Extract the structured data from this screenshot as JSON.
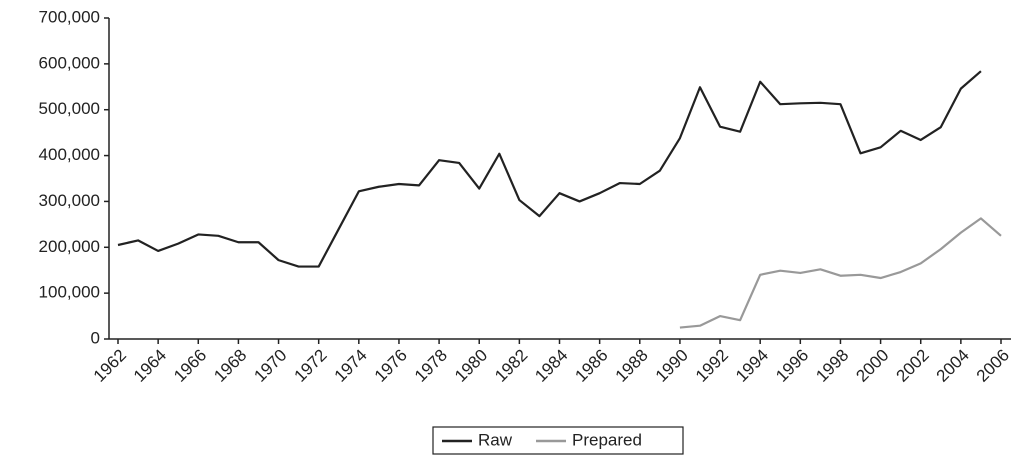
{
  "chart_data": {
    "type": "line",
    "x": [
      1962,
      1963,
      1964,
      1965,
      1966,
      1967,
      1968,
      1969,
      1970,
      1971,
      1972,
      1973,
      1974,
      1975,
      1976,
      1977,
      1978,
      1979,
      1980,
      1981,
      1982,
      1983,
      1984,
      1985,
      1986,
      1987,
      1988,
      1989,
      1990,
      1991,
      1992,
      1993,
      1994,
      1995,
      1996,
      1997,
      1998,
      1999,
      2000,
      2001,
      2002,
      2003,
      2004,
      2005,
      2006
    ],
    "series": [
      {
        "name": "Raw",
        "color": "#222222",
        "values": [
          205000,
          215000,
          192000,
          208000,
          228000,
          225000,
          211000,
          211000,
          172000,
          158000,
          158000,
          240000,
          322000,
          332000,
          338000,
          335000,
          390000,
          384000,
          328000,
          404000,
          303000,
          268000,
          318000,
          300000,
          318000,
          340000,
          338000,
          367000,
          438000,
          549000,
          463000,
          452000,
          561000,
          512000,
          514000,
          515000,
          512000,
          405000,
          418000,
          454000,
          434000,
          462000,
          546000,
          584000,
          null
        ]
      },
      {
        "name": "Prepared",
        "color": "#999999",
        "values": [
          null,
          null,
          null,
          null,
          null,
          null,
          null,
          null,
          null,
          null,
          null,
          null,
          null,
          null,
          null,
          null,
          null,
          null,
          null,
          null,
          null,
          null,
          null,
          null,
          null,
          null,
          null,
          null,
          25000,
          29000,
          50000,
          41000,
          140000,
          149000,
          144000,
          152000,
          138000,
          140000,
          133000,
          146000,
          165000,
          196000,
          232000,
          263000,
          225000
        ]
      }
    ],
    "xlim": [
      1962,
      2006
    ],
    "xticks": [
      1962,
      1964,
      1966,
      1968,
      1970,
      1972,
      1974,
      1976,
      1978,
      1980,
      1982,
      1984,
      1986,
      1988,
      1990,
      1992,
      1994,
      1996,
      1998,
      2000,
      2002,
      2004,
      2006
    ],
    "ylim": [
      0,
      700000
    ],
    "yticks": [
      {
        "value": 0,
        "label": "0"
      },
      {
        "value": 100000,
        "label": "100,000"
      },
      {
        "value": 200000,
        "label": "200,000"
      },
      {
        "value": 300000,
        "label": "300,000"
      },
      {
        "value": 400000,
        "label": "400,000"
      },
      {
        "value": 500000,
        "label": "500,000"
      },
      {
        "value": 600000,
        "label": "600,000"
      },
      {
        "value": 700000,
        "label": "700,000"
      }
    ],
    "legend": "bottom"
  }
}
